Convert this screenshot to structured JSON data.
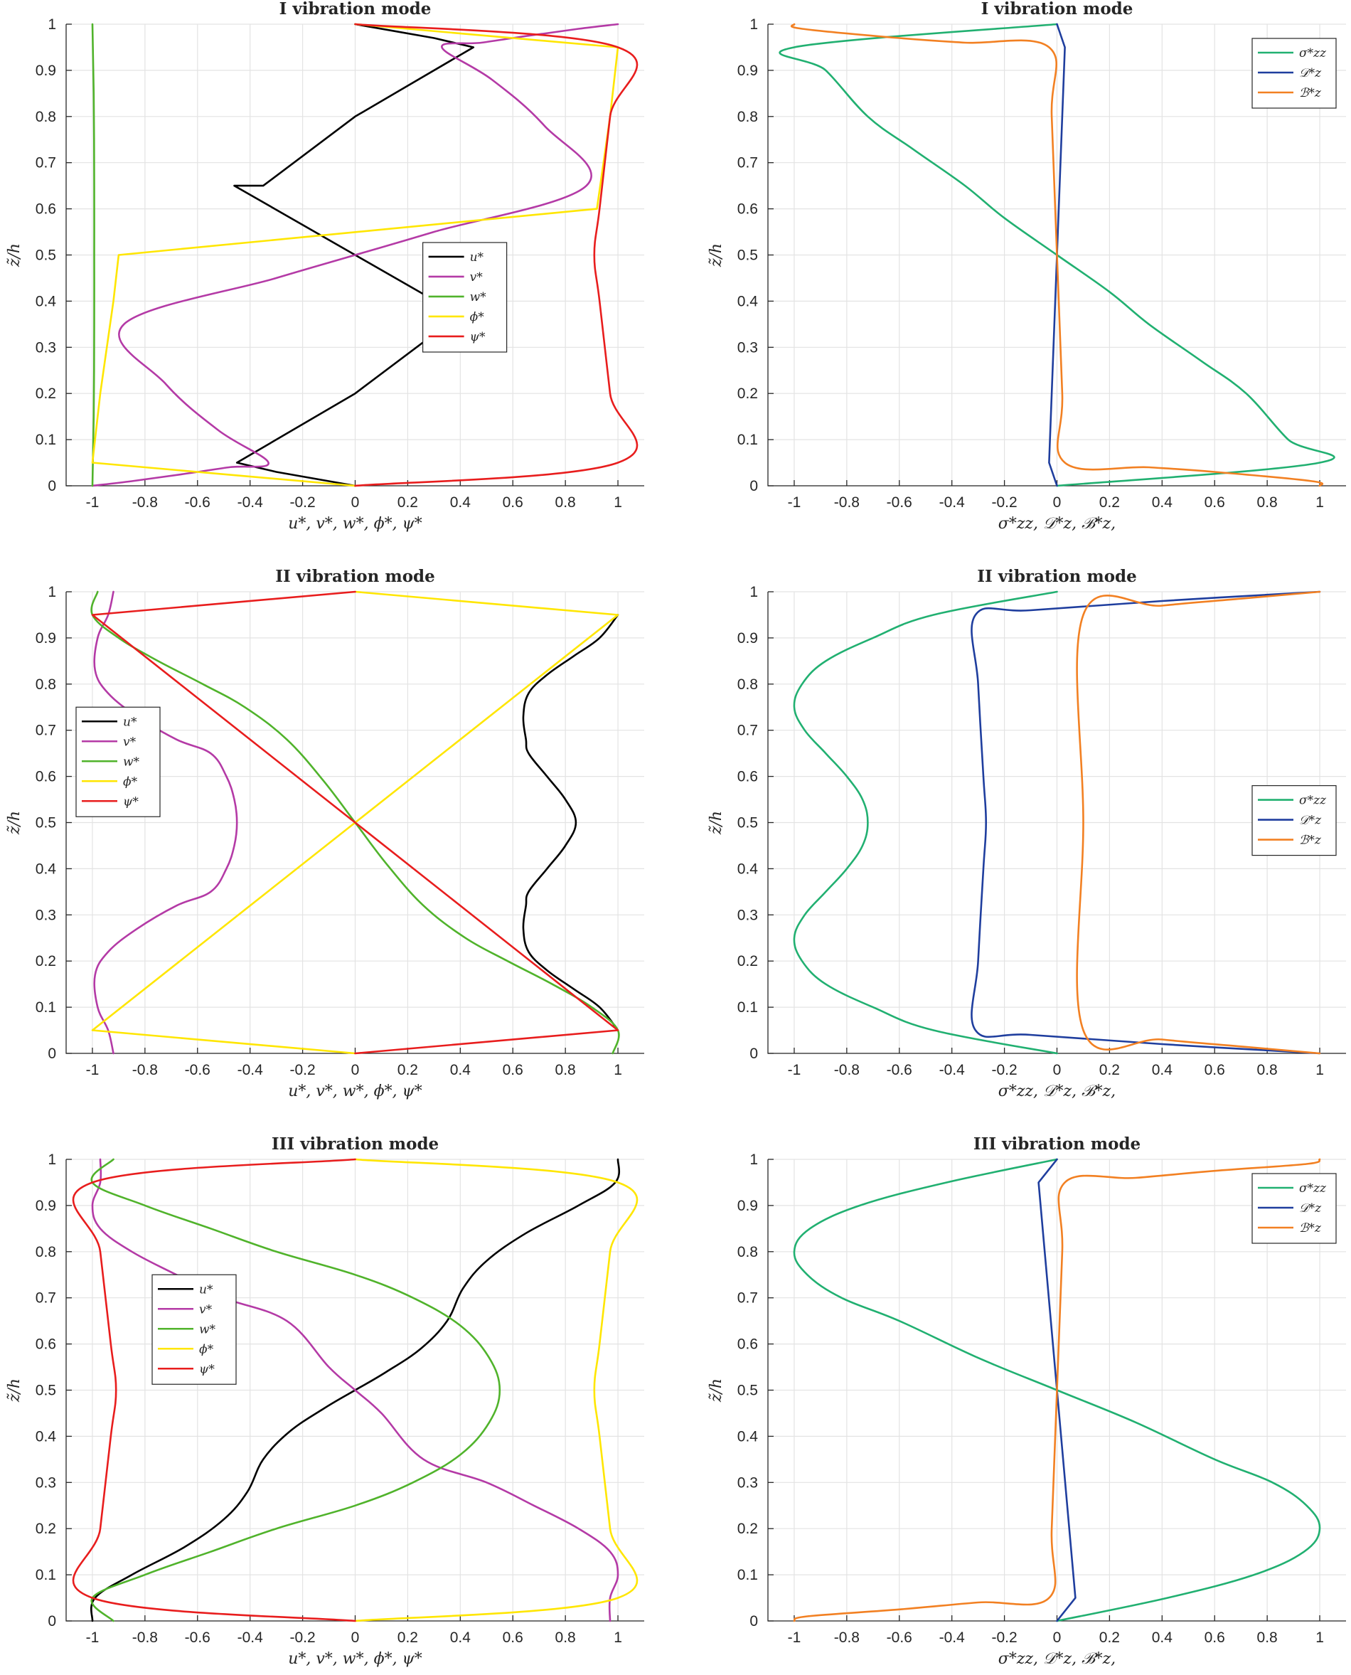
{
  "figure": {
    "background": "#ffffff",
    "grid_color": "#e3e3e3",
    "axis_color": "#262626"
  },
  "chart_data": [
    {
      "id": "mode1-displacements",
      "type": "line",
      "title": "I vibration mode",
      "xlabel": "u*, v*, w*, ϕ*, ψ*",
      "ylabel": "z̃/h",
      "xlim": [
        -1.1,
        1.1
      ],
      "ylim": [
        0,
        1
      ],
      "xticks": [
        -1,
        -0.8,
        -0.6,
        -0.4,
        -0.2,
        0,
        0.2,
        0.4,
        0.6,
        0.8,
        1
      ],
      "xtick_labels": [
        "-1",
        "-0.8",
        "-0.6",
        "-0.4",
        "-0.2",
        "0",
        "0.2",
        "0.4",
        "0.6",
        "0.8",
        "1"
      ],
      "yticks": [
        0,
        0.1,
        0.2,
        0.3,
        0.4,
        0.5,
        0.6,
        0.7,
        0.8,
        0.9,
        1
      ],
      "ytick_labels": [
        "0",
        "0.1",
        "0.2",
        "0.3",
        "0.4",
        "0.5",
        "0.6",
        "0.7",
        "0.8",
        "0.9",
        "1"
      ],
      "grid": true,
      "legend": "bottom-right",
      "series": [
        {
          "name": "u*",
          "color": "#000000",
          "x": [
            0.0,
            -0.3,
            -0.45,
            -0.45,
            0.0,
            0.35,
            0.46,
            0.0
          ],
          "y": [
            0.0,
            0.03,
            0.05,
            0.05,
            0.2,
            0.35,
            0.35,
            0.5
          ],
          "sym": "odd"
        },
        {
          "name": "v*",
          "color": "#b43aa6",
          "x": [
            -1.0,
            -0.85,
            -0.66,
            -0.48,
            -0.33,
            -0.52,
            -0.72,
            -0.88,
            -0.3,
            0.0
          ],
          "y": [
            0.0,
            0.01,
            0.025,
            0.04,
            0.05,
            0.12,
            0.22,
            0.35,
            0.45,
            0.5
          ],
          "sym": "odd"
        },
        {
          "name": "w*",
          "color": "#50b32b",
          "x": [
            -1.0,
            -0.995,
            -0.993,
            -0.993
          ],
          "y": [
            0.0,
            0.15,
            0.35,
            0.5
          ],
          "sym": "even"
        },
        {
          "name": "ϕ*",
          "color": "#ffe600",
          "x": [
            0.0,
            -1.0,
            -0.97,
            -0.92,
            -0.9
          ],
          "y": [
            0.0,
            0.05,
            0.2,
            0.4,
            0.5
          ],
          "sym": "odd"
        },
        {
          "name": "ψ*",
          "color": "#e81d1d",
          "x": [
            0.0,
            1.0,
            0.97,
            0.93,
            0.91
          ],
          "y": [
            0.0,
            0.05,
            0.2,
            0.4,
            0.5
          ],
          "sym": "even"
        }
      ]
    },
    {
      "id": "mode1-stresses",
      "type": "line",
      "title": "I vibration mode",
      "xlabel": "σ*zz, 𝒟*z, ℬ*z,",
      "ylabel": "z̃/h",
      "xlim": [
        -1.1,
        1.1
      ],
      "ylim": [
        0,
        1
      ],
      "xticks": [
        -1,
        -0.8,
        -0.6,
        -0.4,
        -0.2,
        0,
        0.2,
        0.4,
        0.6,
        0.8,
        1
      ],
      "xtick_labels": [
        "-1",
        "-0.8",
        "-0.6",
        "-0.4",
        "-0.2",
        "0",
        "0.2",
        "0.4",
        "0.6",
        "0.8",
        "1"
      ],
      "yticks": [
        0,
        0.1,
        0.2,
        0.3,
        0.4,
        0.5,
        0.6,
        0.7,
        0.8,
        0.9,
        1
      ],
      "ytick_labels": [
        "0",
        "0.1",
        "0.2",
        "0.3",
        "0.4",
        "0.5",
        "0.6",
        "0.7",
        "0.8",
        "0.9",
        "1"
      ],
      "grid": true,
      "legend": "top-right",
      "series": [
        {
          "name": "σ*zz",
          "color": "#21b071",
          "x": [
            0.0,
            1.0,
            0.88,
            0.72,
            0.55,
            0.35,
            0.2,
            0.0
          ],
          "y": [
            0.0,
            0.05,
            0.1,
            0.2,
            0.27,
            0.35,
            0.42,
            0.5
          ],
          "sym": "odd"
        },
        {
          "name": "𝒟*z",
          "color": "#1f3e9e",
          "x": [
            0.0,
            -0.03,
            -0.02,
            0.0
          ],
          "y": [
            0.0,
            0.05,
            0.2,
            0.5
          ],
          "sym": "odd"
        },
        {
          "name": "ℬ*z",
          "color": "#f28022",
          "x": [
            1.0,
            0.97,
            0.6,
            0.35,
            0.03,
            0.02,
            0.0
          ],
          "y": [
            0.0,
            0.01,
            0.03,
            0.04,
            0.05,
            0.2,
            0.5
          ],
          "sym": "odd"
        }
      ]
    },
    {
      "id": "mode2-displacements",
      "type": "line",
      "title": "II vibration mode",
      "xlabel": "u*, v*, w*, ϕ*, ψ*",
      "ylabel": "z̃/h",
      "xlim": [
        -1.1,
        1.1
      ],
      "ylim": [
        0,
        1
      ],
      "xticks": [
        -1,
        -0.8,
        -0.6,
        -0.4,
        -0.2,
        0,
        0.2,
        0.4,
        0.6,
        0.8,
        1
      ],
      "xtick_labels": [
        "-1",
        "-0.8",
        "-0.6",
        "-0.4",
        "-0.2",
        "0",
        "0.2",
        "0.4",
        "0.6",
        "0.8",
        "1"
      ],
      "yticks": [
        0,
        0.1,
        0.2,
        0.3,
        0.4,
        0.5,
        0.6,
        0.7,
        0.8,
        0.9,
        1
      ],
      "ytick_labels": [
        "0",
        "0.1",
        "0.2",
        "0.3",
        "0.4",
        "0.5",
        "0.6",
        "0.7",
        "0.8",
        "0.9",
        "1"
      ],
      "grid": true,
      "legend": "middle-left",
      "series": [
        {
          "name": "u*",
          "color": "#000000",
          "x": [
            1.0,
            0.93,
            0.83,
            0.73,
            0.66,
            0.64,
            0.65,
            0.66,
            0.73,
            0.8,
            0.84
          ],
          "y": [
            0.05,
            0.1,
            0.14,
            0.18,
            0.22,
            0.27,
            0.32,
            0.35,
            0.4,
            0.45,
            0.5
          ],
          "sym": "even"
        },
        {
          "name": "v*",
          "color": "#b43aa6",
          "x": [
            -0.92,
            -0.94,
            -0.98,
            -0.99,
            -0.94,
            -0.83,
            -0.68,
            -0.55,
            -0.49,
            -0.46,
            -0.45
          ],
          "y": [
            0.0,
            0.05,
            0.1,
            0.17,
            0.22,
            0.27,
            0.32,
            0.35,
            0.4,
            0.45,
            0.5
          ],
          "sym": "even"
        },
        {
          "name": "w*",
          "color": "#50b32b",
          "x": [
            0.98,
            1.0,
            0.9,
            0.75,
            0.58,
            0.42,
            0.26,
            0.12,
            0.0
          ],
          "y": [
            0.0,
            0.05,
            0.1,
            0.15,
            0.2,
            0.25,
            0.32,
            0.41,
            0.5
          ],
          "sym": "odd"
        },
        {
          "name": "ϕ*",
          "color": "#ffe600",
          "x": [
            0.0,
            -1.0,
            0.0
          ],
          "y": [
            0.0,
            0.05,
            0.5
          ],
          "sym": "odd"
        },
        {
          "name": "ψ*",
          "color": "#e81d1d",
          "x": [
            0.0,
            1.0,
            0.0
          ],
          "y": [
            0.0,
            0.05,
            0.5
          ],
          "sym": "odd"
        }
      ]
    },
    {
      "id": "mode2-stresses",
      "type": "line",
      "title": "II vibration mode",
      "xlabel": "σ*zz, 𝒟*z, ℬ*z,",
      "ylabel": "z̃/h",
      "xlim": [
        -1.1,
        1.1
      ],
      "ylim": [
        0,
        1
      ],
      "xticks": [
        -1,
        -0.8,
        -0.6,
        -0.4,
        -0.2,
        0,
        0.2,
        0.4,
        0.6,
        0.8,
        1
      ],
      "xtick_labels": [
        "-1",
        "-0.8",
        "-0.6",
        "-0.4",
        "-0.2",
        "0",
        "0.2",
        "0.4",
        "0.6",
        "0.8",
        "1"
      ],
      "yticks": [
        0,
        0.1,
        0.2,
        0.3,
        0.4,
        0.5,
        0.6,
        0.7,
        0.8,
        0.9,
        1
      ],
      "ytick_labels": [
        "0",
        "0.1",
        "0.2",
        "0.3",
        "0.4",
        "0.5",
        "0.6",
        "0.7",
        "0.8",
        "0.9",
        "1"
      ],
      "grid": true,
      "legend": "middle-right",
      "series": [
        {
          "name": "σ*zz",
          "color": "#21b071",
          "x": [
            0.0,
            -0.47,
            -0.7,
            -0.88,
            -0.97,
            -1.0,
            -0.96,
            -0.88,
            -0.8,
            -0.74,
            -0.72
          ],
          "y": [
            0.0,
            0.05,
            0.1,
            0.15,
            0.2,
            0.25,
            0.3,
            0.35,
            0.4,
            0.45,
            0.5
          ],
          "sym": "even"
        },
        {
          "name": "𝒟*z",
          "color": "#1f3e9e",
          "x": [
            1.0,
            0.4,
            -0.1,
            -0.31,
            -0.3,
            -0.28,
            -0.27
          ],
          "y": [
            0.0,
            0.02,
            0.04,
            0.05,
            0.2,
            0.4,
            0.5
          ],
          "sym": "even"
        },
        {
          "name": "ℬ*z",
          "color": "#f28022",
          "x": [
            1.0,
            0.7,
            0.4,
            0.1,
            0.1
          ],
          "y": [
            0.0,
            0.015,
            0.03,
            0.05,
            0.5
          ],
          "sym": "even"
        }
      ]
    },
    {
      "id": "mode3-displacements",
      "type": "line",
      "title": "III vibration mode",
      "xlabel": "u*, v*, w*, ϕ*, ψ*",
      "ylabel": "z̃/h",
      "xlim": [
        -1.1,
        1.1
      ],
      "ylim": [
        0,
        1
      ],
      "xticks": [
        -1,
        -0.8,
        -0.6,
        -0.4,
        -0.2,
        0,
        0.2,
        0.4,
        0.6,
        0.8,
        1
      ],
      "xtick_labels": [
        "-1",
        "-0.8",
        "-0.6",
        "-0.4",
        "-0.2",
        "0",
        "0.2",
        "0.4",
        "0.6",
        "0.8",
        "1"
      ],
      "yticks": [
        0,
        0.1,
        0.2,
        0.3,
        0.4,
        0.5,
        0.6,
        0.7,
        0.8,
        0.9,
        1
      ],
      "ytick_labels": [
        "0",
        "0.1",
        "0.2",
        "0.3",
        "0.4",
        "0.5",
        "0.6",
        "0.7",
        "0.8",
        "0.9",
        "1"
      ],
      "grid": true,
      "legend": "middle-left",
      "series": [
        {
          "name": "u*",
          "color": "#000000",
          "x": [
            -1.0,
            -0.99,
            -0.85,
            -0.65,
            -0.5,
            -0.41,
            -0.35,
            -0.25,
            -0.12,
            0.0
          ],
          "y": [
            0.0,
            0.05,
            0.1,
            0.16,
            0.22,
            0.28,
            0.35,
            0.41,
            0.46,
            0.5
          ],
          "sym": "odd"
        },
        {
          "name": "v*",
          "color": "#b43aa6",
          "x": [
            0.97,
            0.97,
            1.0,
            0.97,
            0.85,
            0.68,
            0.5,
            0.26,
            0.1,
            0.0
          ],
          "y": [
            0.0,
            0.05,
            0.1,
            0.15,
            0.2,
            0.25,
            0.3,
            0.35,
            0.45,
            0.5
          ],
          "sym": "odd"
        },
        {
          "name": "w*",
          "color": "#50b32b",
          "x": [
            -0.92,
            -1.0,
            -0.8,
            -0.55,
            -0.3,
            0.0,
            0.22,
            0.4,
            0.51,
            0.55
          ],
          "y": [
            0.0,
            0.05,
            0.1,
            0.15,
            0.2,
            0.25,
            0.3,
            0.36,
            0.43,
            0.5
          ],
          "sym": "even"
        },
        {
          "name": "ϕ*",
          "color": "#ffe600",
          "x": [
            0.0,
            1.0,
            0.97,
            0.93,
            0.91
          ],
          "y": [
            0.0,
            0.05,
            0.2,
            0.4,
            0.5
          ],
          "sym": "even"
        },
        {
          "name": "ψ*",
          "color": "#e81d1d",
          "x": [
            0.0,
            -1.0,
            -0.97,
            -0.93,
            -0.91
          ],
          "y": [
            0.0,
            0.05,
            0.2,
            0.4,
            0.5
          ],
          "sym": "even"
        }
      ]
    },
    {
      "id": "mode3-stresses",
      "type": "line",
      "title": "III vibration mode",
      "xlabel": "σ*zz, 𝒟*z, ℬ*z,",
      "ylabel": "z̃/h",
      "xlim": [
        -1.1,
        1.1
      ],
      "ylim": [
        0,
        1
      ],
      "xticks": [
        -1,
        -0.8,
        -0.6,
        -0.4,
        -0.2,
        0,
        0.2,
        0.4,
        0.6,
        0.8,
        1
      ],
      "xtick_labels": [
        "-1",
        "-0.8",
        "-0.6",
        "-0.4",
        "-0.2",
        "0",
        "0.2",
        "0.4",
        "0.6",
        "0.8",
        "1"
      ],
      "yticks": [
        0,
        0.1,
        0.2,
        0.3,
        0.4,
        0.5,
        0.6,
        0.7,
        0.8,
        0.9,
        1
      ],
      "ytick_labels": [
        "0",
        "0.1",
        "0.2",
        "0.3",
        "0.4",
        "0.5",
        "0.6",
        "0.7",
        "0.8",
        "0.9",
        "1"
      ],
      "grid": true,
      "legend": "top-right",
      "series": [
        {
          "name": "σ*zz",
          "color": "#21b071",
          "x": [
            0.0,
            0.42,
            0.75,
            0.94,
            1.0,
            0.95,
            0.82,
            0.6,
            0.3,
            0.0
          ],
          "y": [
            0.0,
            0.05,
            0.1,
            0.15,
            0.2,
            0.25,
            0.3,
            0.35,
            0.43,
            0.5
          ],
          "sym": "odd"
        },
        {
          "name": "𝒟*z",
          "color": "#1f3e9e",
          "x": [
            0.0,
            0.07,
            0.0
          ],
          "y": [
            0.0,
            0.05,
            0.5
          ],
          "sym": "odd"
        },
        {
          "name": "ℬ*z",
          "color": "#f28022",
          "x": [
            -1.0,
            -0.95,
            -0.6,
            -0.3,
            -0.03,
            -0.02,
            0.0
          ],
          "y": [
            0.0,
            0.01,
            0.025,
            0.04,
            0.05,
            0.2,
            0.5
          ],
          "sym": "odd"
        }
      ]
    }
  ]
}
